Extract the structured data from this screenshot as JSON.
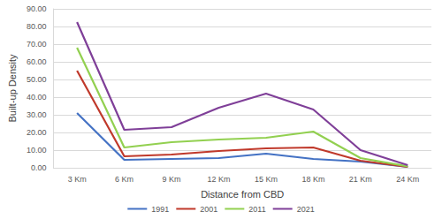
{
  "chart_data": {
    "type": "line",
    "x_label": "Distance from CBD",
    "y_label": "Built-up Density",
    "categories": [
      "3 Km",
      "6 Km",
      "9 Km",
      "12 Km",
      "15 Km",
      "18 Km",
      "21 Km",
      "24 Km"
    ],
    "series": [
      {
        "name": "1991",
        "color": "#4472c4",
        "values": [
          31,
          4.5,
          5,
          5.5,
          8,
          5,
          3.5,
          0.5
        ]
      },
      {
        "name": "2001",
        "color": "#c0392b",
        "values": [
          55,
          6.5,
          7.5,
          9.5,
          11,
          11.5,
          4,
          0.5
        ]
      },
      {
        "name": "2011",
        "color": "#92d050",
        "values": [
          68,
          11.5,
          14.5,
          16,
          17,
          20.5,
          5.5,
          0.8
        ]
      },
      {
        "name": "2021",
        "color": "#7f3f98",
        "values": [
          82.5,
          21.5,
          23,
          34,
          42,
          33,
          10,
          1.5
        ]
      }
    ],
    "ylim": [
      0,
      90
    ],
    "yticks": [
      {
        "value": 0,
        "label": "0.00"
      },
      {
        "value": 10,
        "label": "10.00"
      },
      {
        "value": 20,
        "label": "20.00"
      },
      {
        "value": 30,
        "label": "30.00"
      },
      {
        "value": 40,
        "label": "40.00"
      },
      {
        "value": 50,
        "label": "50.00"
      },
      {
        "value": 60,
        "label": "60.00"
      },
      {
        "value": 70,
        "label": "70.00"
      },
      {
        "value": 80,
        "label": "80.00"
      },
      {
        "value": 90,
        "label": "90.00"
      }
    ],
    "grid": true,
    "legend": "bottom"
  }
}
